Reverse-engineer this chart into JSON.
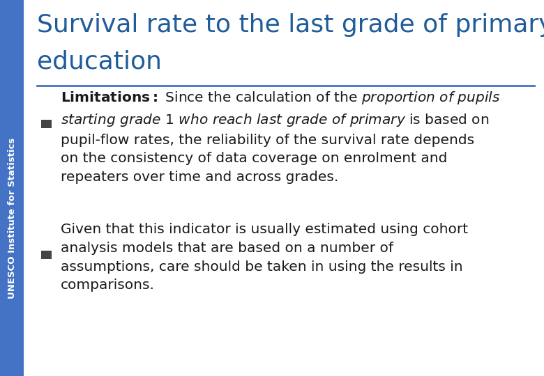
{
  "title_line1": "Survival rate to the last grade of primary",
  "title_line2": "education",
  "title_color": "#1F5C99",
  "sidebar_color": "#4472C4",
  "sidebar_text": "UNESCO Institute for Statistics",
  "sidebar_text_color": "#FFFFFF",
  "divider_color": "#4472C4",
  "background_color": "#FFFFFF",
  "bullet_square_color": "#444444",
  "bullet1_text": "$\\mathbf{Limitations:}$ Since the calculation of the $\\it{proportion\\ of\\ pupils}$\n$\\it{starting\\ grade\\ 1\\ who\\ reach\\ last\\ grade\\ of\\ primary}$ is based on\npupil-flow rates, the reliability of the survival rate depends\non the consistency of data coverage on enrolment and\nrepeaters over time and across grades.",
  "bullet2_text": "Given that this indicator is usually estimated using cohort\nanalysis models that are based on a number of\nassumptions, care should be taken in using the results in\ncomparisons.",
  "title_fontsize": 26,
  "body_fontsize": 14.5,
  "sidebar_fontsize": 9.5
}
